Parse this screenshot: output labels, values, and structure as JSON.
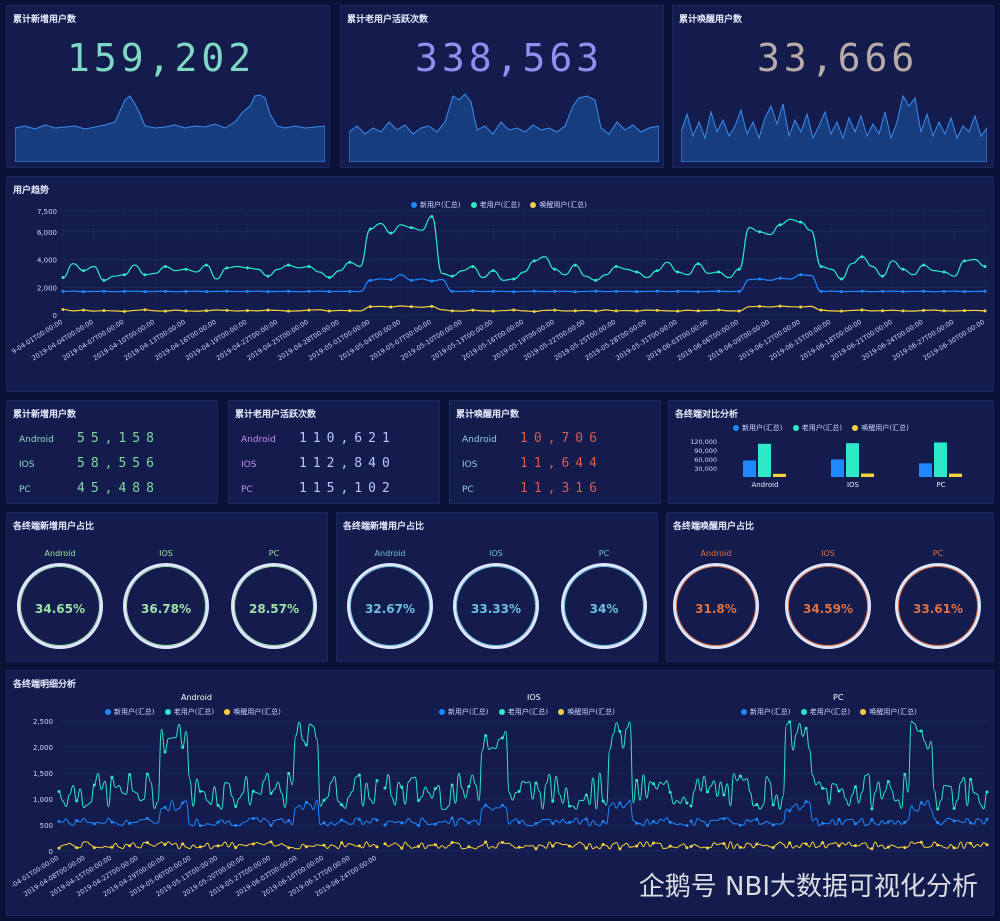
{
  "kpis": [
    {
      "title": "累计新增用户数",
      "value": "159,202",
      "color": "#7fd8c4"
    },
    {
      "title": "累计老用户活跃次数",
      "value": "338,563",
      "color": "#8f8ff0"
    },
    {
      "title": "累计唤醒用户数",
      "value": "33,666",
      "color": "#b7aaa8"
    }
  ],
  "trend": {
    "title": "用户趋势",
    "legend": [
      "新用户(汇总)",
      "老用户(汇总)",
      "唤醒用户(汇总)"
    ],
    "yticks": [
      "7,500",
      "6,000",
      "4,000",
      "2,000",
      "0"
    ],
    "xticks": [
      "9-04-01T00:00:00",
      "2019-04-04T00:00:00",
      "2019-04-07T00:00:00",
      "2019-04-10T00:00:00",
      "2019-04-13T00:00:00",
      "2019-04-16T00:00:00",
      "2019-04-19T00:00:00",
      "2019-04-22T00:00:00",
      "2019-04-25T00:00:00",
      "2019-04-28T00:00:00",
      "2019-05-01T00:00:00",
      "2019-05-04T00:00:00",
      "2019-05-07T00:00:00",
      "2019-05-10T00:00:00",
      "2019-05-13T00:00:00",
      "2019-05-16T00:00:00",
      "2019-05-19T00:00:00",
      "2019-05-22T00:00:00",
      "2019-05-25T00:00:00",
      "2019-05-28T00:00:00",
      "2019-05-31T00:00:00",
      "2019-06-03T00:00:00",
      "2019-06-06T00:00:00",
      "2019-06-09T00:00:00",
      "2019-06-12T00:00:00",
      "2019-06-15T00:00:00",
      "2019-06-18T00:00:00",
      "2019-06-21T00:00:00",
      "2019-06-24T00:00:00",
      "2019-06-27T00:00:00",
      "2019-06-30T00:00:00"
    ]
  },
  "counts": [
    {
      "title": "累计新增用户数",
      "labelColor": "#8fd8c8",
      "valueColor": "#7fd8a0",
      "rows": [
        {
          "label": "Android",
          "value": "55,158"
        },
        {
          "label": "IOS",
          "value": "58,556"
        },
        {
          "label": "PC",
          "value": "45,488"
        }
      ]
    },
    {
      "title": "累计老用户活跃次数",
      "labelColor": "#c88ff0",
      "valueColor": "#b8c8ff",
      "rows": [
        {
          "label": "Android",
          "value": "110,621"
        },
        {
          "label": "IOS",
          "value": "112,840"
        },
        {
          "label": "PC",
          "value": "115,102"
        }
      ]
    },
    {
      "title": "累计唤醒用户数",
      "labelColor": "#8fc8f0",
      "valueColor": "#d85a50",
      "rows": [
        {
          "label": "Android",
          "value": "10,706"
        },
        {
          "label": "IOS",
          "value": "11,644"
        },
        {
          "label": "PC",
          "value": "11,316"
        }
      ]
    }
  ],
  "compare": {
    "title": "各终端对比分析",
    "legend": [
      "新用户(汇总)",
      "老用户(汇总)",
      "唤醒用户(汇总)"
    ],
    "yticks": [
      "120,000",
      "90,000",
      "60,000",
      "30,000"
    ]
  },
  "shares": [
    {
      "title": "各终端新增用户占比",
      "color": "#9fe0a8",
      "items": [
        {
          "label": "Android",
          "pct": "34.65%"
        },
        {
          "label": "IOS",
          "pct": "36.78%"
        },
        {
          "label": "PC",
          "pct": "28.57%"
        }
      ]
    },
    {
      "title": "各终端新增用户占比",
      "color": "#6fc0e0",
      "items": [
        {
          "label": "Android",
          "pct": "32.67%"
        },
        {
          "label": "IOS",
          "pct": "33.33%"
        },
        {
          "label": "PC",
          "pct": "34%"
        }
      ]
    },
    {
      "title": "各终端唤醒用户占比",
      "color": "#e07040",
      "items": [
        {
          "label": "Android",
          "pct": "31.8%"
        },
        {
          "label": "IOS",
          "pct": "34.59%"
        },
        {
          "label": "PC",
          "pct": "33.61%"
        }
      ]
    }
  ],
  "detail": {
    "title": "各终端明细分析",
    "subtitles": [
      "Android",
      "IOS",
      "PC"
    ],
    "legend": [
      "新用户(汇总)",
      "老用户(汇总)",
      "唤醒用户(汇总)"
    ],
    "yticks": [
      "2,500",
      "2,000",
      "1,500",
      "1,000",
      "500",
      "0"
    ],
    "xticks": [
      "-04-01T00:00:00",
      "2019-04-08T00:00:00",
      "2019-04-15T00:00:00",
      "2019-04-22T00:00:00",
      "2019-04-29T00:00:00",
      "2019-05-06T00:00:00",
      "2019-05-13T00:00:00",
      "2019-05-20T00:00:00",
      "2019-05-27T00:00:00",
      "2019-06-03T00:00:00",
      "2019-06-10T00:00:00",
      "2019-06-17T00:00:00",
      "2019-06-24T00:00:00"
    ]
  },
  "colors": {
    "new": "#1e88ff",
    "old": "#2ee8c8",
    "wake": "#f5d040"
  },
  "watermark": "企鹅号 NBI大数据可视化分析",
  "chart_data": [
    {
      "type": "line",
      "title": "用户趋势",
      "ylim": [
        0,
        7500
      ],
      "series": [
        {
          "name": "新用户(汇总)",
          "values": [
            1700,
            1720,
            1690,
            1700,
            1710,
            1680,
            1700,
            1720,
            1690,
            1700,
            1710,
            1680,
            1700,
            1720,
            1690,
            1700,
            1710,
            1690,
            1700,
            1720,
            1690,
            1700,
            1710,
            1680,
            1700,
            1720,
            1690,
            1710,
            1700,
            1690,
            2500,
            2600,
            2550,
            2900,
            2500,
            2600,
            2450,
            2550,
            1700,
            1700,
            1720,
            1690,
            1700,
            1710,
            1680,
            1700,
            1720,
            1690,
            1700,
            1710,
            1680,
            1700,
            1720,
            1690,
            1700,
            1710,
            1690,
            1700,
            1720,
            1690,
            1700,
            1710,
            1680,
            1700,
            1720,
            1690,
            1700,
            2550,
            2600,
            2500,
            2650,
            2600,
            2900,
            2850,
            1700,
            1720,
            1690,
            1700,
            1710,
            1680,
            1700,
            1720,
            1690,
            1700,
            1710,
            1680,
            1700,
            1720,
            1690,
            1700,
            1710
          ]
        },
        {
          "name": "老用户(汇总)",
          "values": [
            2700,
            3700,
            3200,
            3500,
            2500,
            2800,
            2900,
            3600,
            2900,
            3000,
            3500,
            3200,
            3300,
            3100,
            3600,
            2600,
            3400,
            3500,
            3400,
            3300,
            2800,
            3300,
            3600,
            3400,
            3500,
            3100,
            2700,
            3200,
            3800,
            3500,
            6200,
            6600,
            5900,
            6500,
            6300,
            6100,
            7100,
            3000,
            2800,
            3200,
            3500,
            2700,
            3200,
            2500,
            2600,
            3100,
            3900,
            4200,
            3300,
            2900,
            3600,
            2800,
            2500,
            2900,
            3500,
            3300,
            3100,
            2700,
            3200,
            3800,
            3100,
            2900,
            3700,
            3000,
            3100,
            2700,
            3300,
            6300,
            6000,
            5800,
            6500,
            6900,
            6700,
            6100,
            3500,
            3300,
            2600,
            3700,
            4200,
            3500,
            2800,
            3900,
            3300,
            2900,
            3600,
            3200,
            3100,
            2800,
            3900,
            4000,
            3500
          ]
        },
        {
          "name": "唤醒用户(汇总)",
          "values": [
            400,
            300,
            350,
            280,
            320,
            300,
            260,
            330,
            380,
            300,
            280,
            350,
            300,
            270,
            310,
            360,
            330,
            290,
            320,
            300,
            350,
            330,
            280,
            300,
            350,
            380,
            290,
            330,
            310,
            300,
            600,
            620,
            580,
            650,
            600,
            560,
            620,
            380,
            300,
            280,
            350,
            300,
            280,
            320,
            360,
            300,
            250,
            330,
            350,
            290,
            300,
            330,
            280,
            360,
            300,
            320,
            290,
            350,
            330,
            300,
            280,
            340,
            300,
            320,
            360,
            300,
            290,
            600,
            620,
            580,
            640,
            600,
            580,
            620,
            350,
            300,
            280,
            330,
            360,
            300,
            310,
            340,
            300,
            280,
            330,
            350,
            300,
            290,
            320,
            330,
            300
          ]
        }
      ]
    },
    {
      "type": "bar",
      "title": "各终端对比分析",
      "categories": [
        "Android",
        "IOS",
        "PC"
      ],
      "ylim": [
        0,
        120000
      ],
      "series": [
        {
          "name": "新用户(汇总)",
          "values": [
            55158,
            58556,
            45488
          ]
        },
        {
          "name": "老用户(汇总)",
          "values": [
            110621,
            112840,
            115102
          ]
        },
        {
          "name": "唤醒用户(汇总)",
          "values": [
            10706,
            11644,
            11316
          ]
        }
      ]
    }
  ]
}
